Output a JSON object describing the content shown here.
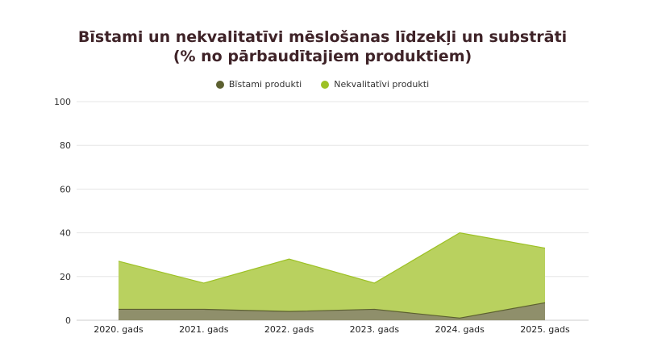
{
  "chart_data": {
    "type": "area",
    "title": "Bīstami un nekvalitatīvi mēslošanas līdzekļi un substrāti",
    "subtitle": "(% no pārbaudītajiem produktiem)",
    "categories": [
      "2020. gads",
      "2021. gads",
      "2022. gads",
      "2023. gads",
      "2024. gads",
      "2025. gads"
    ],
    "series": [
      {
        "name": "Bīstami produkti",
        "color": "#5c6030",
        "fill": "#8f8f6b",
        "values": [
          5,
          5,
          4,
          5,
          1,
          8
        ]
      },
      {
        "name": "Nekvalitatīvi produkti",
        "color": "#9dc125",
        "fill": "#b9d15f",
        "values": [
          27,
          17,
          28,
          17,
          40,
          33
        ]
      }
    ],
    "xlabel": "",
    "ylabel": "",
    "ylim": [
      0,
      100
    ],
    "yticks": [
      0,
      20,
      40,
      60,
      80,
      100
    ],
    "grid": true,
    "legend_position": "top"
  },
  "colors": {
    "title": "#3f2328",
    "grid": "#e6e6e6",
    "axis": "#cccccc"
  }
}
